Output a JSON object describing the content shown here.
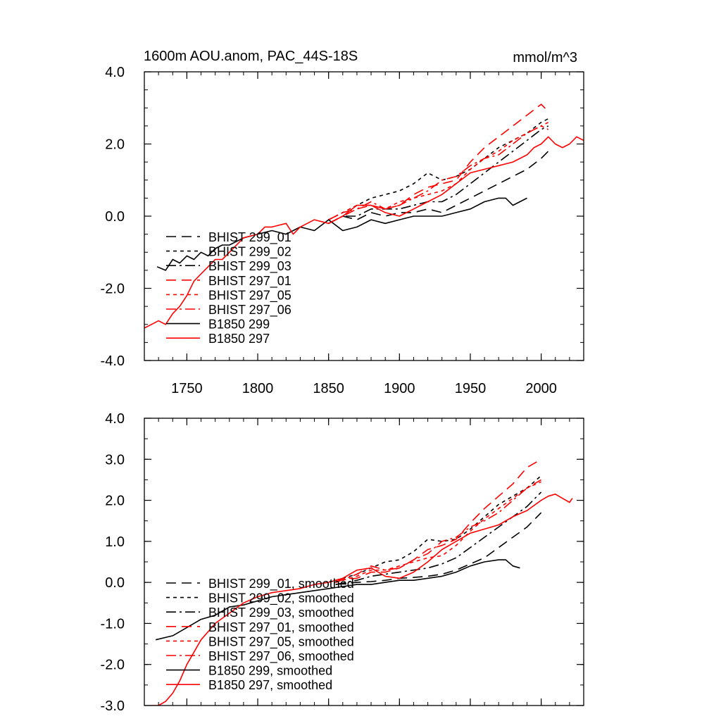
{
  "figure": {
    "title_left": "1600m AOU.anom, PAC_44S-18S",
    "title_right": "mmol/m^3"
  },
  "styles": {
    "BHIST 299_01": {
      "color": "#000000",
      "dash": "14 8"
    },
    "BHIST 299_02": {
      "color": "#000000",
      "dash": "5 5"
    },
    "BHIST 299_03": {
      "color": "#000000",
      "dash": "14 5 3 5"
    },
    "BHIST 297_01": {
      "color": "#ff0000",
      "dash": "14 8"
    },
    "BHIST 297_05": {
      "color": "#ff0000",
      "dash": "5 5"
    },
    "BHIST 297_06": {
      "color": "#ff0000",
      "dash": "14 5 3 5"
    },
    "B1850 299": {
      "color": "#000000",
      "dash": ""
    },
    "B1850 297": {
      "color": "#ff0000",
      "dash": ""
    }
  },
  "chart_data": [
    {
      "type": "line",
      "xlim": [
        1720,
        2030
      ],
      "ylim": [
        -4.0,
        4.0
      ],
      "xticks": [
        1750,
        1800,
        1850,
        1900,
        1950,
        2000
      ],
      "xtick_labels": [
        "1750",
        "1800",
        "1850",
        "1900",
        "1950",
        "2000"
      ],
      "yticks": [
        -4.0,
        -2.0,
        0.0,
        2.0,
        4.0
      ],
      "ytick_labels": [
        "-4.0",
        "-2.0",
        "0.0",
        "2.0",
        "4.0"
      ],
      "legend_position": "bottom-left",
      "series": [
        {
          "name": "BHIST 299_01",
          "style": "BHIST 299_01",
          "x": [
            1850,
            1860,
            1870,
            1880,
            1890,
            1900,
            1910,
            1920,
            1930,
            1940,
            1950,
            1960,
            1970,
            1980,
            1990,
            2000,
            2005
          ],
          "y": [
            -0.2,
            0.0,
            -0.1,
            0.1,
            0.0,
            0.1,
            0.1,
            0.2,
            0.1,
            0.3,
            0.5,
            0.7,
            0.9,
            1.1,
            1.3,
            1.6,
            1.8
          ]
        },
        {
          "name": "BHIST 299_02",
          "style": "BHIST 299_02",
          "x": [
            1850,
            1860,
            1870,
            1880,
            1890,
            1900,
            1910,
            1920,
            1930,
            1940,
            1950,
            1960,
            1970,
            1980,
            1990,
            2000,
            2005
          ],
          "y": [
            -0.1,
            0.1,
            0.3,
            0.5,
            0.6,
            0.7,
            0.9,
            1.2,
            1.0,
            1.1,
            1.3,
            1.6,
            1.9,
            2.1,
            2.3,
            2.6,
            2.7
          ]
        },
        {
          "name": "BHIST 299_03",
          "style": "BHIST 299_03",
          "x": [
            1850,
            1860,
            1870,
            1880,
            1890,
            1900,
            1910,
            1920,
            1930,
            1940,
            1950,
            1960,
            1970,
            1980,
            1990,
            2000,
            2005
          ],
          "y": [
            -0.2,
            0.0,
            0.0,
            0.2,
            0.2,
            0.2,
            0.3,
            0.4,
            0.4,
            0.6,
            0.9,
            1.2,
            1.5,
            1.8,
            2.1,
            2.4,
            2.5
          ]
        },
        {
          "name": "BHIST 297_01",
          "style": "BHIST 297_01",
          "x": [
            1850,
            1860,
            1870,
            1880,
            1890,
            1900,
            1910,
            1920,
            1930,
            1940,
            1950,
            1960,
            1970,
            1980,
            1990,
            2000,
            2005
          ],
          "y": [
            -0.1,
            0.1,
            0.2,
            0.3,
            0.2,
            0.3,
            0.6,
            0.8,
            0.9,
            1.0,
            1.5,
            1.9,
            2.2,
            2.5,
            2.8,
            3.1,
            2.9
          ]
        },
        {
          "name": "BHIST 297_05",
          "style": "BHIST 297_05",
          "x": [
            1850,
            1860,
            1870,
            1880,
            1890,
            1900,
            1910,
            1920,
            1930,
            1940,
            1950,
            1960,
            1970,
            1980,
            1990,
            2000,
            2005
          ],
          "y": [
            -0.1,
            0.1,
            0.3,
            0.3,
            0.2,
            0.4,
            0.5,
            0.6,
            0.7,
            0.9,
            1.3,
            1.6,
            1.8,
            2.1,
            2.3,
            2.5,
            2.4
          ]
        },
        {
          "name": "BHIST 297_06",
          "style": "BHIST 297_06",
          "x": [
            1850,
            1860,
            1870,
            1880,
            1890,
            1900,
            1910,
            1920,
            1930,
            1940,
            1950,
            1960,
            1970,
            1980,
            1990,
            2000,
            2005
          ],
          "y": [
            -0.2,
            0.0,
            0.2,
            0.4,
            0.2,
            0.3,
            0.5,
            0.7,
            1.0,
            1.1,
            1.4,
            1.6,
            1.7,
            2.0,
            2.3,
            2.5,
            2.6
          ]
        },
        {
          "name": "B1850 299",
          "style": "B1850 299",
          "x": [
            1729,
            1735,
            1740,
            1745,
            1750,
            1755,
            1760,
            1765,
            1770,
            1775,
            1780,
            1790,
            1800,
            1810,
            1820,
            1830,
            1840,
            1850,
            1860,
            1870,
            1880,
            1890,
            1900,
            1910,
            1920,
            1930,
            1940,
            1950,
            1960,
            1970,
            1975,
            1980,
            1985,
            1990
          ],
          "y": [
            -1.4,
            -1.5,
            -1.2,
            -1.3,
            -1.1,
            -1.2,
            -1.0,
            -1.1,
            -0.9,
            -0.8,
            -0.8,
            -0.6,
            -0.5,
            -0.4,
            -0.5,
            -0.3,
            -0.4,
            -0.1,
            -0.4,
            -0.3,
            -0.1,
            -0.2,
            -0.1,
            0.0,
            0.0,
            0.0,
            0.1,
            0.2,
            0.4,
            0.5,
            0.5,
            0.3,
            0.4,
            0.5
          ]
        },
        {
          "name": "B1850 297",
          "style": "B1850 297",
          "x": [
            1720,
            1725,
            1730,
            1735,
            1740,
            1745,
            1750,
            1755,
            1760,
            1765,
            1770,
            1775,
            1780,
            1790,
            1800,
            1805,
            1810,
            1820,
            1825,
            1830,
            1840,
            1850,
            1860,
            1870,
            1880,
            1890,
            1900,
            1910,
            1920,
            1930,
            1940,
            1950,
            1960,
            1970,
            1980,
            1990,
            1995,
            2000,
            2005,
            2010,
            2015,
            2020,
            2025,
            2030
          ],
          "y": [
            -3.1,
            -3.0,
            -2.9,
            -3.0,
            -2.7,
            -2.5,
            -2.2,
            -1.8,
            -1.6,
            -1.4,
            -1.2,
            -1.2,
            -1.0,
            -0.6,
            -0.5,
            -0.3,
            -0.3,
            -0.2,
            -0.5,
            -0.3,
            -0.1,
            -0.2,
            0.0,
            0.3,
            0.3,
            0.1,
            0.0,
            0.2,
            0.4,
            0.6,
            0.9,
            1.2,
            1.3,
            1.4,
            1.5,
            1.7,
            1.9,
            2.0,
            2.2,
            2.0,
            1.9,
            2.0,
            2.2,
            2.1
          ]
        }
      ]
    },
    {
      "type": "line",
      "xlim": [
        1720,
        2030
      ],
      "ylim": [
        -3.0,
        4.0
      ],
      "xticks": [
        1750,
        1800,
        1850,
        1900,
        1950,
        2000
      ],
      "yticks": [
        -3.0,
        -2.0,
        -1.0,
        0.0,
        1.0,
        2.0,
        3.0,
        4.0
      ],
      "ytick_labels": [
        "-3.0",
        "-2.0",
        "-1.0",
        "0.0",
        "1.0",
        "2.0",
        "3.0",
        "4.0"
      ],
      "legend_position": "bottom-left",
      "series": [
        {
          "name": "BHIST 299_01, smoothed",
          "style": "BHIST 299_01",
          "x": [
            1855,
            1870,
            1880,
            1890,
            1900,
            1910,
            1920,
            1930,
            1940,
            1950,
            1960,
            1970,
            1980,
            1990,
            2000
          ],
          "y": [
            -0.05,
            0.0,
            0.02,
            0.05,
            0.1,
            0.12,
            0.15,
            0.2,
            0.3,
            0.45,
            0.6,
            0.85,
            1.1,
            1.35,
            1.7
          ]
        },
        {
          "name": "BHIST 299_02, smoothed",
          "style": "BHIST 299_02",
          "x": [
            1855,
            1870,
            1880,
            1890,
            1900,
            1910,
            1920,
            1930,
            1940,
            1950,
            1960,
            1970,
            1980,
            1990,
            2000
          ],
          "y": [
            0.05,
            0.2,
            0.35,
            0.5,
            0.55,
            0.75,
            1.05,
            1.0,
            1.05,
            1.3,
            1.6,
            1.9,
            2.1,
            2.3,
            2.6
          ]
        },
        {
          "name": "BHIST 299_03, smoothed",
          "style": "BHIST 299_03",
          "x": [
            1855,
            1870,
            1880,
            1890,
            1900,
            1910,
            1920,
            1930,
            1940,
            1950,
            1960,
            1970,
            1980,
            1990,
            2000
          ],
          "y": [
            -0.05,
            0.05,
            0.15,
            0.2,
            0.25,
            0.3,
            0.35,
            0.45,
            0.6,
            0.85,
            1.1,
            1.35,
            1.6,
            1.85,
            2.2
          ]
        },
        {
          "name": "BHIST 297_01, smoothed",
          "style": "BHIST 297_01",
          "x": [
            1855,
            1870,
            1880,
            1890,
            1900,
            1910,
            1920,
            1930,
            1940,
            1950,
            1960,
            1970,
            1980,
            1990,
            2000
          ],
          "y": [
            0.05,
            0.1,
            0.25,
            0.25,
            0.35,
            0.55,
            0.8,
            0.9,
            1.05,
            1.45,
            1.8,
            2.1,
            2.4,
            2.8,
            3.0
          ]
        },
        {
          "name": "BHIST 297_05, smoothed",
          "style": "BHIST 297_05",
          "x": [
            1855,
            1870,
            1880,
            1890,
            1900,
            1910,
            1920,
            1930,
            1940,
            1950,
            1960,
            1970,
            1980,
            1990,
            2000
          ],
          "y": [
            0.0,
            0.15,
            0.3,
            0.3,
            0.4,
            0.5,
            0.6,
            0.65,
            0.9,
            1.25,
            1.55,
            1.8,
            2.05,
            2.3,
            2.45
          ]
        },
        {
          "name": "BHIST 297_06, smoothed",
          "style": "BHIST 297_06",
          "x": [
            1855,
            1870,
            1880,
            1890,
            1900,
            1910,
            1920,
            1930,
            1940,
            1950,
            1960,
            1970,
            1980,
            1990,
            2000
          ],
          "y": [
            0.0,
            0.2,
            0.4,
            0.3,
            0.35,
            0.55,
            0.7,
            1.0,
            1.1,
            1.35,
            1.5,
            1.7,
            2.0,
            2.3,
            2.5
          ]
        },
        {
          "name": "B1850 299, smoothed",
          "style": "B1850 299",
          "x": [
            1728,
            1740,
            1750,
            1760,
            1770,
            1780,
            1790,
            1800,
            1810,
            1820,
            1830,
            1840,
            1850,
            1860,
            1870,
            1880,
            1890,
            1900,
            1910,
            1920,
            1930,
            1940,
            1950,
            1960,
            1970,
            1975,
            1980,
            1985
          ],
          "y": [
            -1.4,
            -1.3,
            -1.1,
            -0.9,
            -0.8,
            -0.6,
            -0.55,
            -0.45,
            -0.35,
            -0.3,
            -0.25,
            -0.2,
            -0.15,
            -0.1,
            -0.05,
            -0.05,
            0.0,
            0.05,
            0.05,
            0.1,
            0.15,
            0.25,
            0.4,
            0.5,
            0.55,
            0.55,
            0.4,
            0.35
          ]
        },
        {
          "name": "B1850 297, smoothed",
          "style": "B1850 297",
          "x": [
            1725,
            1730,
            1735,
            1740,
            1745,
            1750,
            1755,
            1760,
            1765,
            1770,
            1780,
            1790,
            1800,
            1810,
            1820,
            1830,
            1840,
            1850,
            1860,
            1870,
            1880,
            1890,
            1900,
            1910,
            1920,
            1930,
            1940,
            1950,
            1960,
            1970,
            1980,
            1990,
            2000,
            2005,
            2010,
            2015,
            2020,
            2022
          ],
          "y": [
            -3.0,
            -3.0,
            -2.9,
            -2.7,
            -2.4,
            -2.0,
            -1.7,
            -1.4,
            -1.2,
            -1.0,
            -0.75,
            -0.5,
            -0.35,
            -0.25,
            -0.2,
            -0.15,
            -0.05,
            0.0,
            0.1,
            0.3,
            0.35,
            0.15,
            0.1,
            0.25,
            0.5,
            0.8,
            1.0,
            1.2,
            1.3,
            1.4,
            1.6,
            1.75,
            2.0,
            2.1,
            2.15,
            2.05,
            1.95,
            2.05
          ]
        }
      ]
    }
  ]
}
